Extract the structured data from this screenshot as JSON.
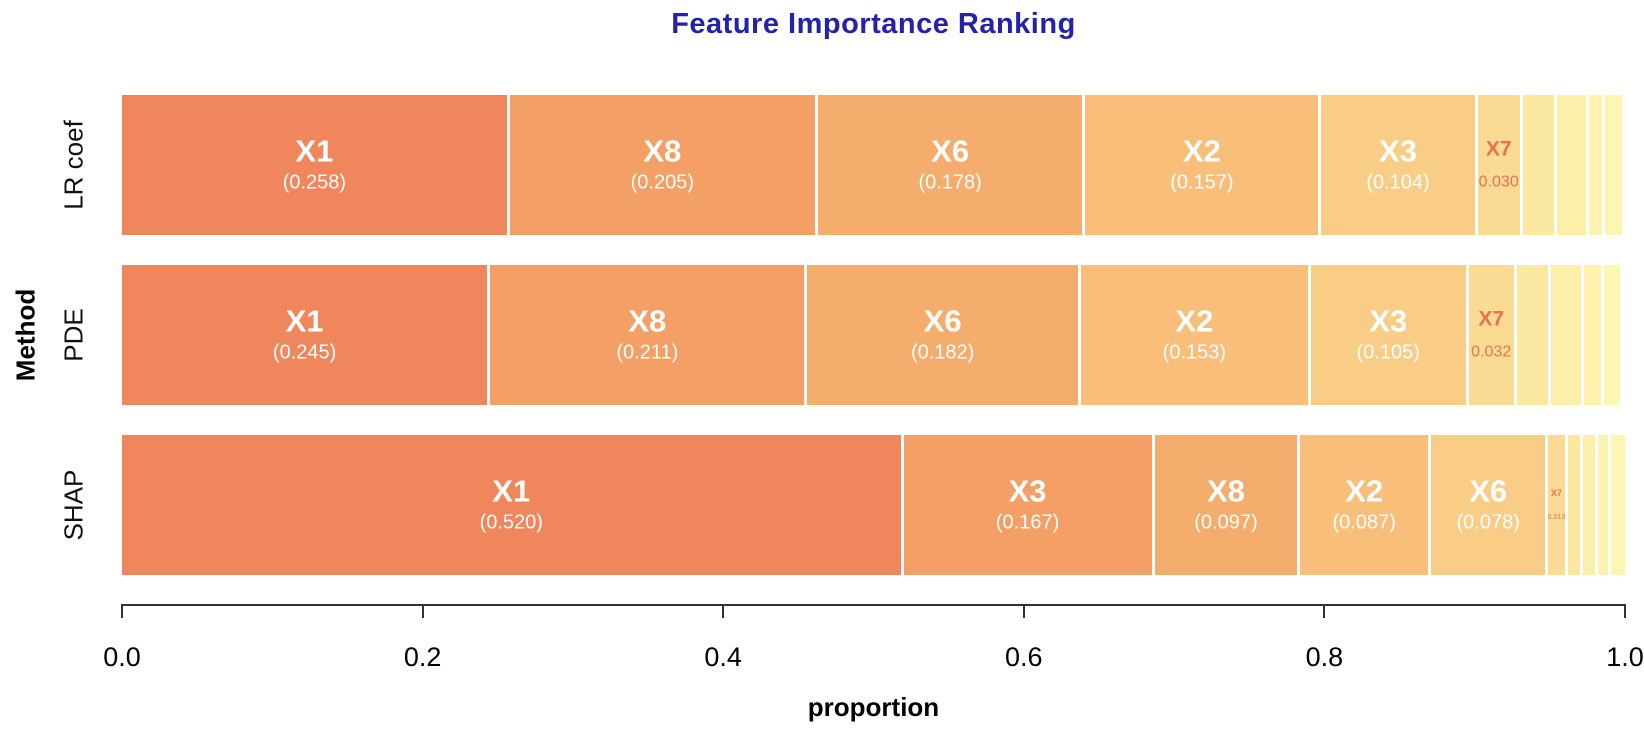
{
  "chart_data": {
    "type": "bar",
    "variant": "horizontal-stacked-proportion",
    "title": "Feature Importance Ranking",
    "title_color": "#2222AA",
    "xlabel": "proportion",
    "ylabel": "Method",
    "xlim": [
      0,
      1
    ],
    "xtick_values": [
      0,
      0.2,
      0.4,
      0.6,
      0.8,
      1.0
    ],
    "xtick_labels": [
      "0.0",
      "0.2",
      "0.4",
      "0.6",
      "0.8",
      "1.0"
    ],
    "legend": "none",
    "grid": false,
    "accent_text_color": "#E4744F",
    "rank_colors": [
      "#F0875C",
      "#F39F66",
      "#F5AD6E",
      "#F8BE7A",
      "#FACD86",
      "#FBDB93",
      "#FCE9A1",
      "#FCEFA9",
      "#FDF3AE",
      "#FDF5B2"
    ],
    "categories": [
      "LR coef",
      "PDE",
      "SHAP"
    ],
    "rows": [
      {
        "method": "LR coef",
        "segments": [
          {
            "feature": "X1",
            "value": 0.258,
            "value_label": "(0.258)",
            "label_style": "light"
          },
          {
            "feature": "X8",
            "value": 0.205,
            "value_label": "(0.205)",
            "label_style": "light"
          },
          {
            "feature": "X6",
            "value": 0.178,
            "value_label": "(0.178)",
            "label_style": "light"
          },
          {
            "feature": "X2",
            "value": 0.157,
            "value_label": "(0.157)",
            "label_style": "light"
          },
          {
            "feature": "X3",
            "value": 0.104,
            "value_label": "(0.104)",
            "label_style": "light"
          },
          {
            "feature": "X7",
            "value": 0.03,
            "value_label": "0.030",
            "label_style": "accent"
          },
          {
            "feature": "",
            "value": 0.023,
            "value_label": "",
            "label_style": "none"
          },
          {
            "feature": "",
            "value": 0.021,
            "value_label": "",
            "label_style": "none"
          },
          {
            "feature": "",
            "value": 0.011,
            "value_label": "",
            "label_style": "none"
          },
          {
            "feature": "",
            "value": 0.011,
            "value_label": "",
            "label_style": "none"
          }
        ]
      },
      {
        "method": "PDE",
        "segments": [
          {
            "feature": "X1",
            "value": 0.245,
            "value_label": "(0.245)",
            "label_style": "light"
          },
          {
            "feature": "X8",
            "value": 0.211,
            "value_label": "(0.211)",
            "label_style": "light"
          },
          {
            "feature": "X6",
            "value": 0.182,
            "value_label": "(0.182)",
            "label_style": "light"
          },
          {
            "feature": "X2",
            "value": 0.153,
            "value_label": "(0.153)",
            "label_style": "light"
          },
          {
            "feature": "X3",
            "value": 0.105,
            "value_label": "(0.105)",
            "label_style": "light"
          },
          {
            "feature": "X7",
            "value": 0.032,
            "value_label": "0.032",
            "label_style": "accent"
          },
          {
            "feature": "",
            "value": 0.023,
            "value_label": "",
            "label_style": "none"
          },
          {
            "feature": "",
            "value": 0.022,
            "value_label": "",
            "label_style": "none"
          },
          {
            "feature": "",
            "value": 0.013,
            "value_label": "",
            "label_style": "none"
          },
          {
            "feature": "",
            "value": 0.011,
            "value_label": "",
            "label_style": "none"
          }
        ]
      },
      {
        "method": "SHAP",
        "segments": [
          {
            "feature": "X1",
            "value": 0.52,
            "value_label": "(0.520)",
            "label_style": "light"
          },
          {
            "feature": "X3",
            "value": 0.167,
            "value_label": "(0.167)",
            "label_style": "light"
          },
          {
            "feature": "X8",
            "value": 0.097,
            "value_label": "(0.097)",
            "label_style": "light"
          },
          {
            "feature": "X2",
            "value": 0.087,
            "value_label": "(0.087)",
            "label_style": "light"
          },
          {
            "feature": "X6",
            "value": 0.078,
            "value_label": "(0.078)",
            "label_style": "light"
          },
          {
            "feature": "X7",
            "value": 0.013,
            "value_label": "0.013",
            "label_style": "accent-tiny"
          },
          {
            "feature": "",
            "value": 0.01,
            "value_label": "",
            "label_style": "none"
          },
          {
            "feature": "",
            "value": 0.01,
            "value_label": "",
            "label_style": "none"
          },
          {
            "feature": "",
            "value": 0.009,
            "value_label": "",
            "label_style": "none"
          },
          {
            "feature": "",
            "value": 0.009,
            "value_label": "",
            "label_style": "none"
          }
        ]
      }
    ]
  }
}
